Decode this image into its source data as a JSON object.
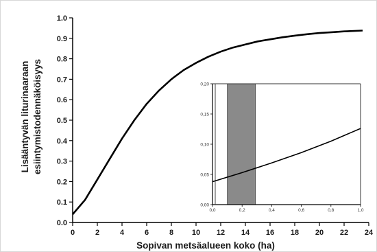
{
  "chart_data": [
    {
      "type": "line",
      "xlabel": "Sopivan metsäalueen koko (ha)",
      "ylabel_lines": [
        "Lisääntyvän liturinaaraan",
        "esiintymistodennäköisyys"
      ],
      "xlim": [
        0,
        24
      ],
      "ylim": [
        0,
        1.0
      ],
      "xticks": [
        "0",
        "2",
        "4",
        "6",
        "8",
        "10",
        "12",
        "14",
        "16",
        "18",
        "20",
        "22",
        "24"
      ],
      "yticks": [
        "0.0",
        "0.1",
        "0.2",
        "0.3",
        "0.4",
        "0.5",
        "0.6",
        "0.7",
        "0.8",
        "0.9",
        "1.0"
      ],
      "series": [
        {
          "x": [
            0,
            1,
            2,
            3,
            4,
            5,
            6,
            7,
            8,
            9,
            10,
            11,
            12,
            13,
            14,
            15,
            16,
            17,
            18,
            19,
            20,
            21,
            22,
            23.5
          ],
          "y": [
            0.04,
            0.11,
            0.21,
            0.31,
            0.41,
            0.5,
            0.58,
            0.645,
            0.7,
            0.745,
            0.78,
            0.81,
            0.835,
            0.855,
            0.87,
            0.885,
            0.895,
            0.905,
            0.913,
            0.92,
            0.926,
            0.93,
            0.934,
            0.938
          ]
        }
      ],
      "color": "#000000"
    },
    {
      "type": "line",
      "inset": true,
      "xlim": [
        0,
        1.0
      ],
      "ylim": [
        0,
        0.2
      ],
      "xticks": [
        "0,0",
        "0,2",
        "0,4",
        "0,6",
        "0,8",
        "1,0"
      ],
      "yticks": [
        "0,00",
        "0,05",
        "0,10",
        "0,15",
        "0,20"
      ],
      "series": [
        {
          "x": [
            0,
            0.2,
            0.4,
            0.6,
            0.8,
            1.0
          ],
          "y": [
            0.038,
            0.053,
            0.069,
            0.086,
            0.105,
            0.126
          ]
        }
      ],
      "shaded_range": [
        0.1,
        0.29
      ],
      "shade_color": "#8a8a8a",
      "color": "#000000"
    }
  ]
}
